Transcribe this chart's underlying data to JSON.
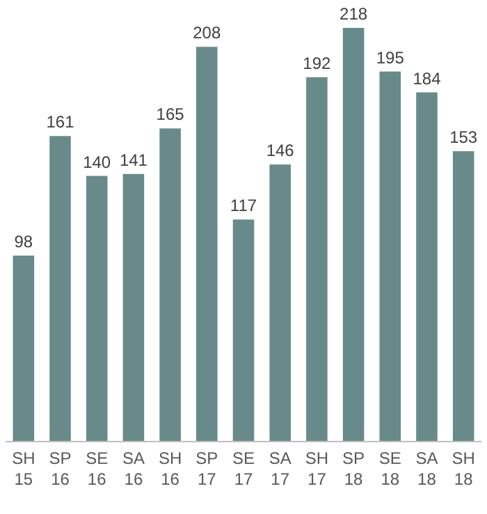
{
  "chart_data": {
    "type": "bar",
    "categories": [
      "SH 15",
      "SP 16",
      "SE 16",
      "SA 16",
      "SH 16",
      "SP 17",
      "SE 17",
      "SA 17",
      "SH 17",
      "SP 18",
      "SE 18",
      "SA 18",
      "SH 18"
    ],
    "values": [
      98,
      161,
      140,
      141,
      165,
      208,
      117,
      146,
      192,
      218,
      195,
      184,
      153
    ],
    "color": "#698a8a",
    "data_labels": true
  }
}
